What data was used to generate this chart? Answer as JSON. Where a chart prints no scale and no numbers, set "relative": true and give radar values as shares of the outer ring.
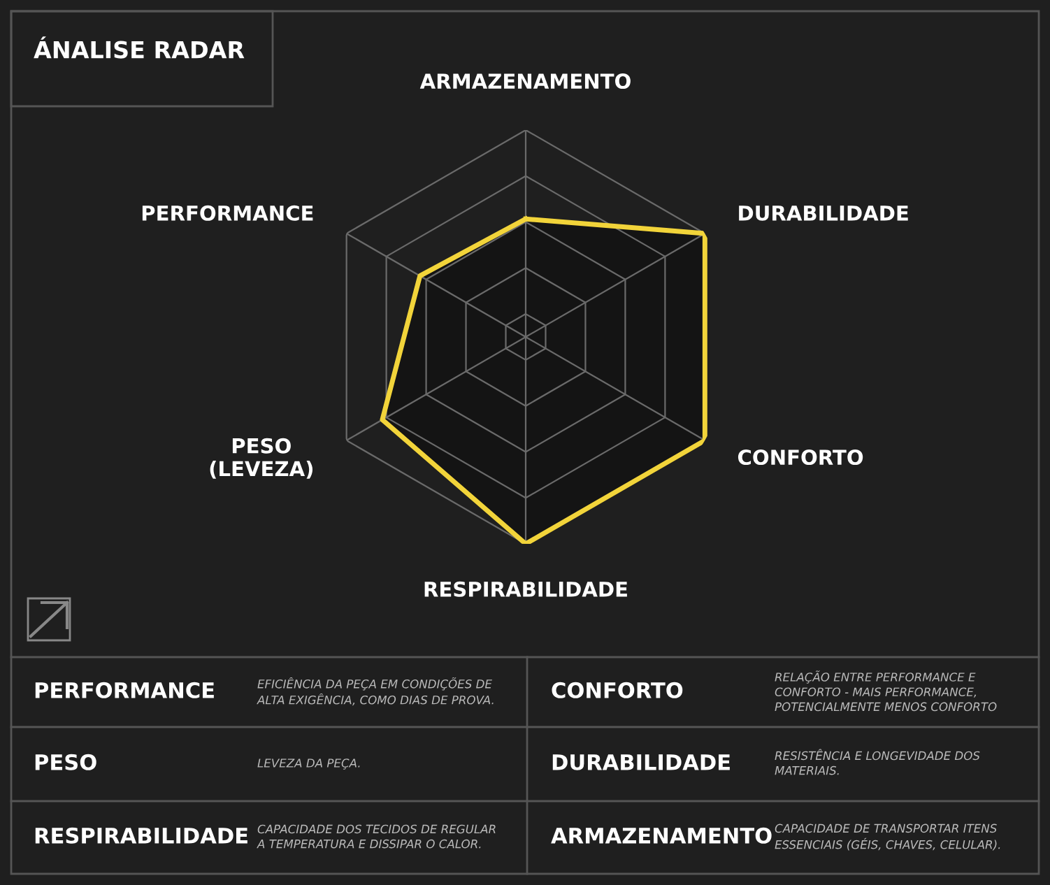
{
  "chart_data": {
    "type": "radar",
    "title": "ÁNALISE RADAR",
    "relative": true,
    "grid": true,
    "legend": false,
    "marker": "none",
    "line_style": "solid",
    "categories": [
      "ARMAZENAMENTO",
      "DURABILIDADE",
      "CONFORTO",
      "RESPIRABILIDADE",
      "PESO\n(LEVEZA)",
      "PERFORMANCE"
    ],
    "series": [
      {
        "color": "#f2d43a",
        "values": [
          0.57,
          1.0,
          1.0,
          1.0,
          0.8,
          0.59
        ]
      }
    ],
    "annotations": [
      "PERFORMANCE",
      "EFICIÊNCIA DA PEÇA EM CONDIÇÕES DE\nALTA EXIGÊNCIA, COMO DIAS DE PROVA.",
      "CONFORTO",
      "RELAÇÃO ENTRE PERFORMANCE E\nCONFORTO - MAIS PERFORMANCE,\nPOTENCIALMENTE MENOS CONFORTO",
      "PESO",
      "LEVEZA DA PEÇA.",
      "DURABILIDADE",
      "RESISTÊNCIA E LONGEVIDADE DOS\nMATERIAIS.",
      "RESPIRABILIDADE",
      "CAPACIDADE DOS TECIDOS DE REGULAR\nA TEMPERATURA E DISSIPAR O CALOR.",
      "ARMAZENAMENTO",
      "CAPACIDADE DE TRANSPORTAR ITENS\nESSENCIAIS (GÉIS, CHAVES, CELULAR)."
    ]
  }
}
